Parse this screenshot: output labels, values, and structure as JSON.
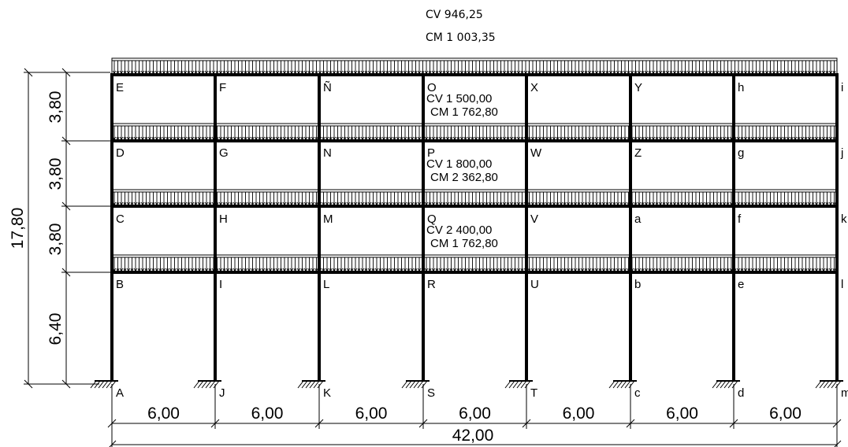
{
  "top_load": {
    "cv": "CV 946,25",
    "cm": "CM 1 003,35"
  },
  "floor_loads": [
    {
      "cv": "CV 1 500,00",
      "cm": "CM 1 762,80"
    },
    {
      "cv": "CV 1 800,00",
      "cm": "CM 2 362,80"
    },
    {
      "cv": "CV 2 400,00",
      "cm": "CM 1 762,80"
    }
  ],
  "story_heights": [
    "3,80",
    "3,80",
    "3,80",
    "6,40"
  ],
  "total_height": "17,80",
  "bay_widths": [
    "6,00",
    "6,00",
    "6,00",
    "6,00",
    "6,00",
    "6,00",
    "6,00"
  ],
  "total_width": "42,00",
  "node_rows": [
    [
      "E",
      "F",
      "Ñ",
      "O",
      "X",
      "Y",
      "h",
      "i"
    ],
    [
      "D",
      "G",
      "N",
      "P",
      "W",
      "Z",
      "g",
      "j"
    ],
    [
      "C",
      "H",
      "M",
      "Q",
      "V",
      "a",
      "f",
      "k"
    ],
    [
      "B",
      "I",
      "L",
      "R",
      "U",
      "b",
      "e",
      "l"
    ]
  ],
  "support_labels": [
    "A",
    "J",
    "K",
    "S",
    "T",
    "c",
    "d",
    "m"
  ]
}
